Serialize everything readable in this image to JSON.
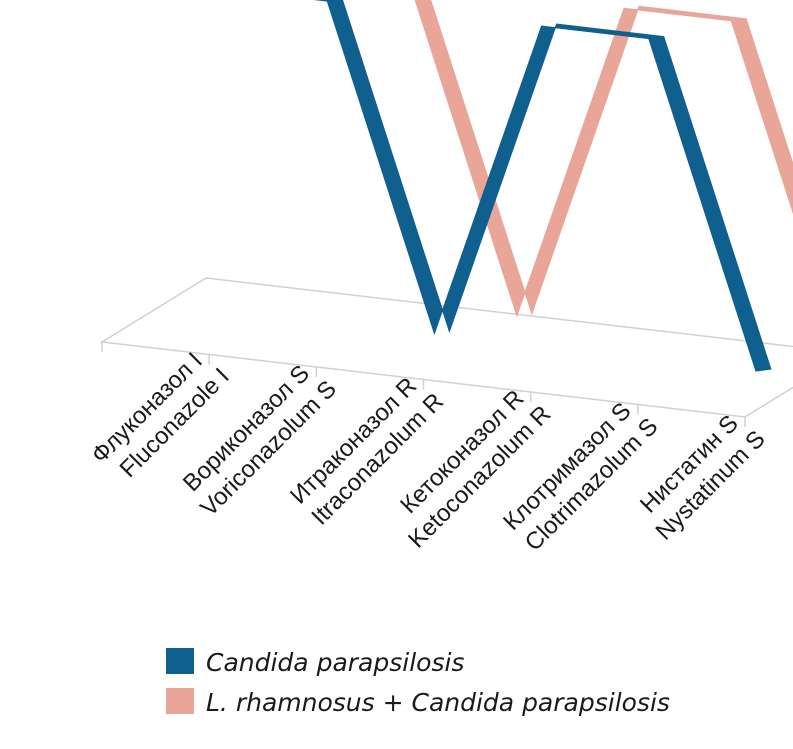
{
  "chart_data": {
    "type": "line",
    "style": "3d-ribbon",
    "categories": [
      [
        "Флуконазол I",
        "Fluconazole I"
      ],
      [
        "Вориконазол S",
        "Voriconazolum S"
      ],
      [
        "Итраконазол R",
        "Itraconazolum R"
      ],
      [
        "Кетоконазол R",
        "Ketoconazolum R"
      ],
      [
        "Клотримазол S",
        "Clotrimazolum S"
      ],
      [
        "Нистатин S",
        "Nystatinum S"
      ]
    ],
    "series": [
      {
        "name": "Candida parapsilosis",
        "color": "#0f5f8f",
        "values": [
          1,
          1,
          0,
          1,
          1,
          0
        ]
      },
      {
        "name": "L. rhamnosus + Candida parapsilosis",
        "color": "#e8a598",
        "values": [
          1,
          1,
          0,
          1,
          1,
          0
        ]
      }
    ],
    "ylim": [
      0,
      1
    ],
    "grid": false,
    "legend_position": "bottom",
    "colors": {
      "floor_stroke": "#d0d0d0",
      "floor_fill": "#ffffff",
      "text": "#1a1a1a"
    }
  }
}
